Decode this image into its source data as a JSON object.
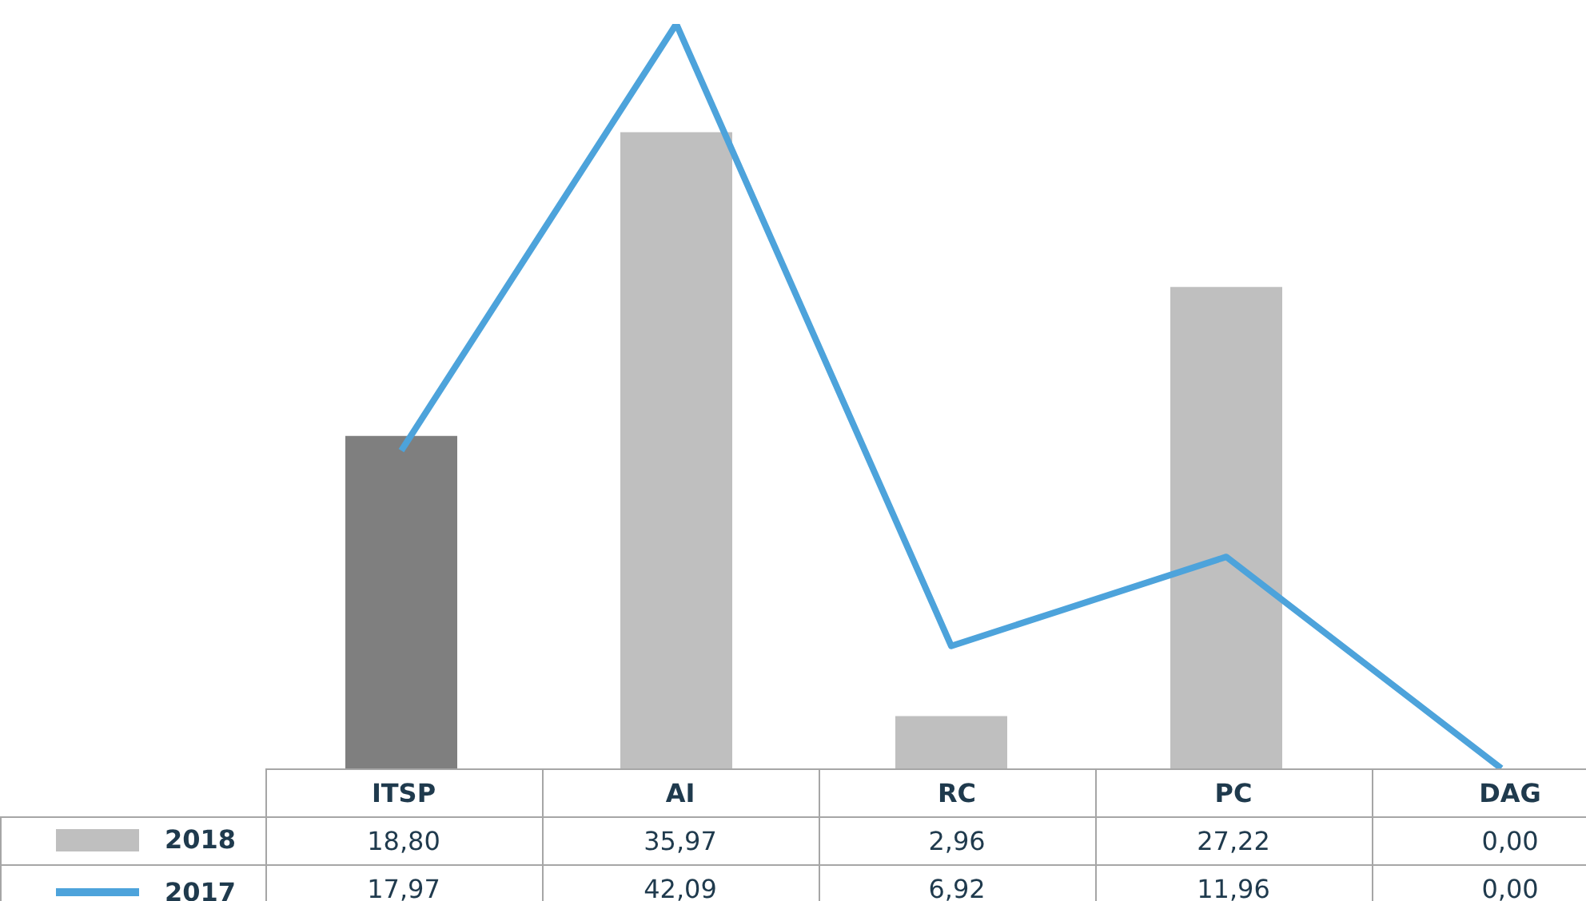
{
  "chart_data": {
    "type": "bar",
    "categories": [
      "ITSP",
      "AI",
      "RC",
      "PC",
      "DAG"
    ],
    "legend": "bottom",
    "series": [
      {
        "name": "2018",
        "color": "#bfbfbf",
        "colors": [
          "#7f7f7f",
          "#bfbfbf",
          "#bfbfbf",
          "#bfbfbf",
          "#bfbfbf"
        ],
        "values": [
          18.8,
          35.97,
          2.96,
          27.22,
          0.0
        ],
        "value_labels": [
          "18,80",
          "35,97",
          "2,96",
          "27,22",
          "0,00"
        ]
      },
      {
        "name": "2017",
        "type": "line",
        "color": "#4da3db",
        "values": [
          17.97,
          42.09,
          6.92,
          11.96,
          0.0
        ],
        "value_labels": [
          "17,97",
          "42,09",
          "6,92",
          "11,96",
          "0,00"
        ]
      }
    ]
  }
}
